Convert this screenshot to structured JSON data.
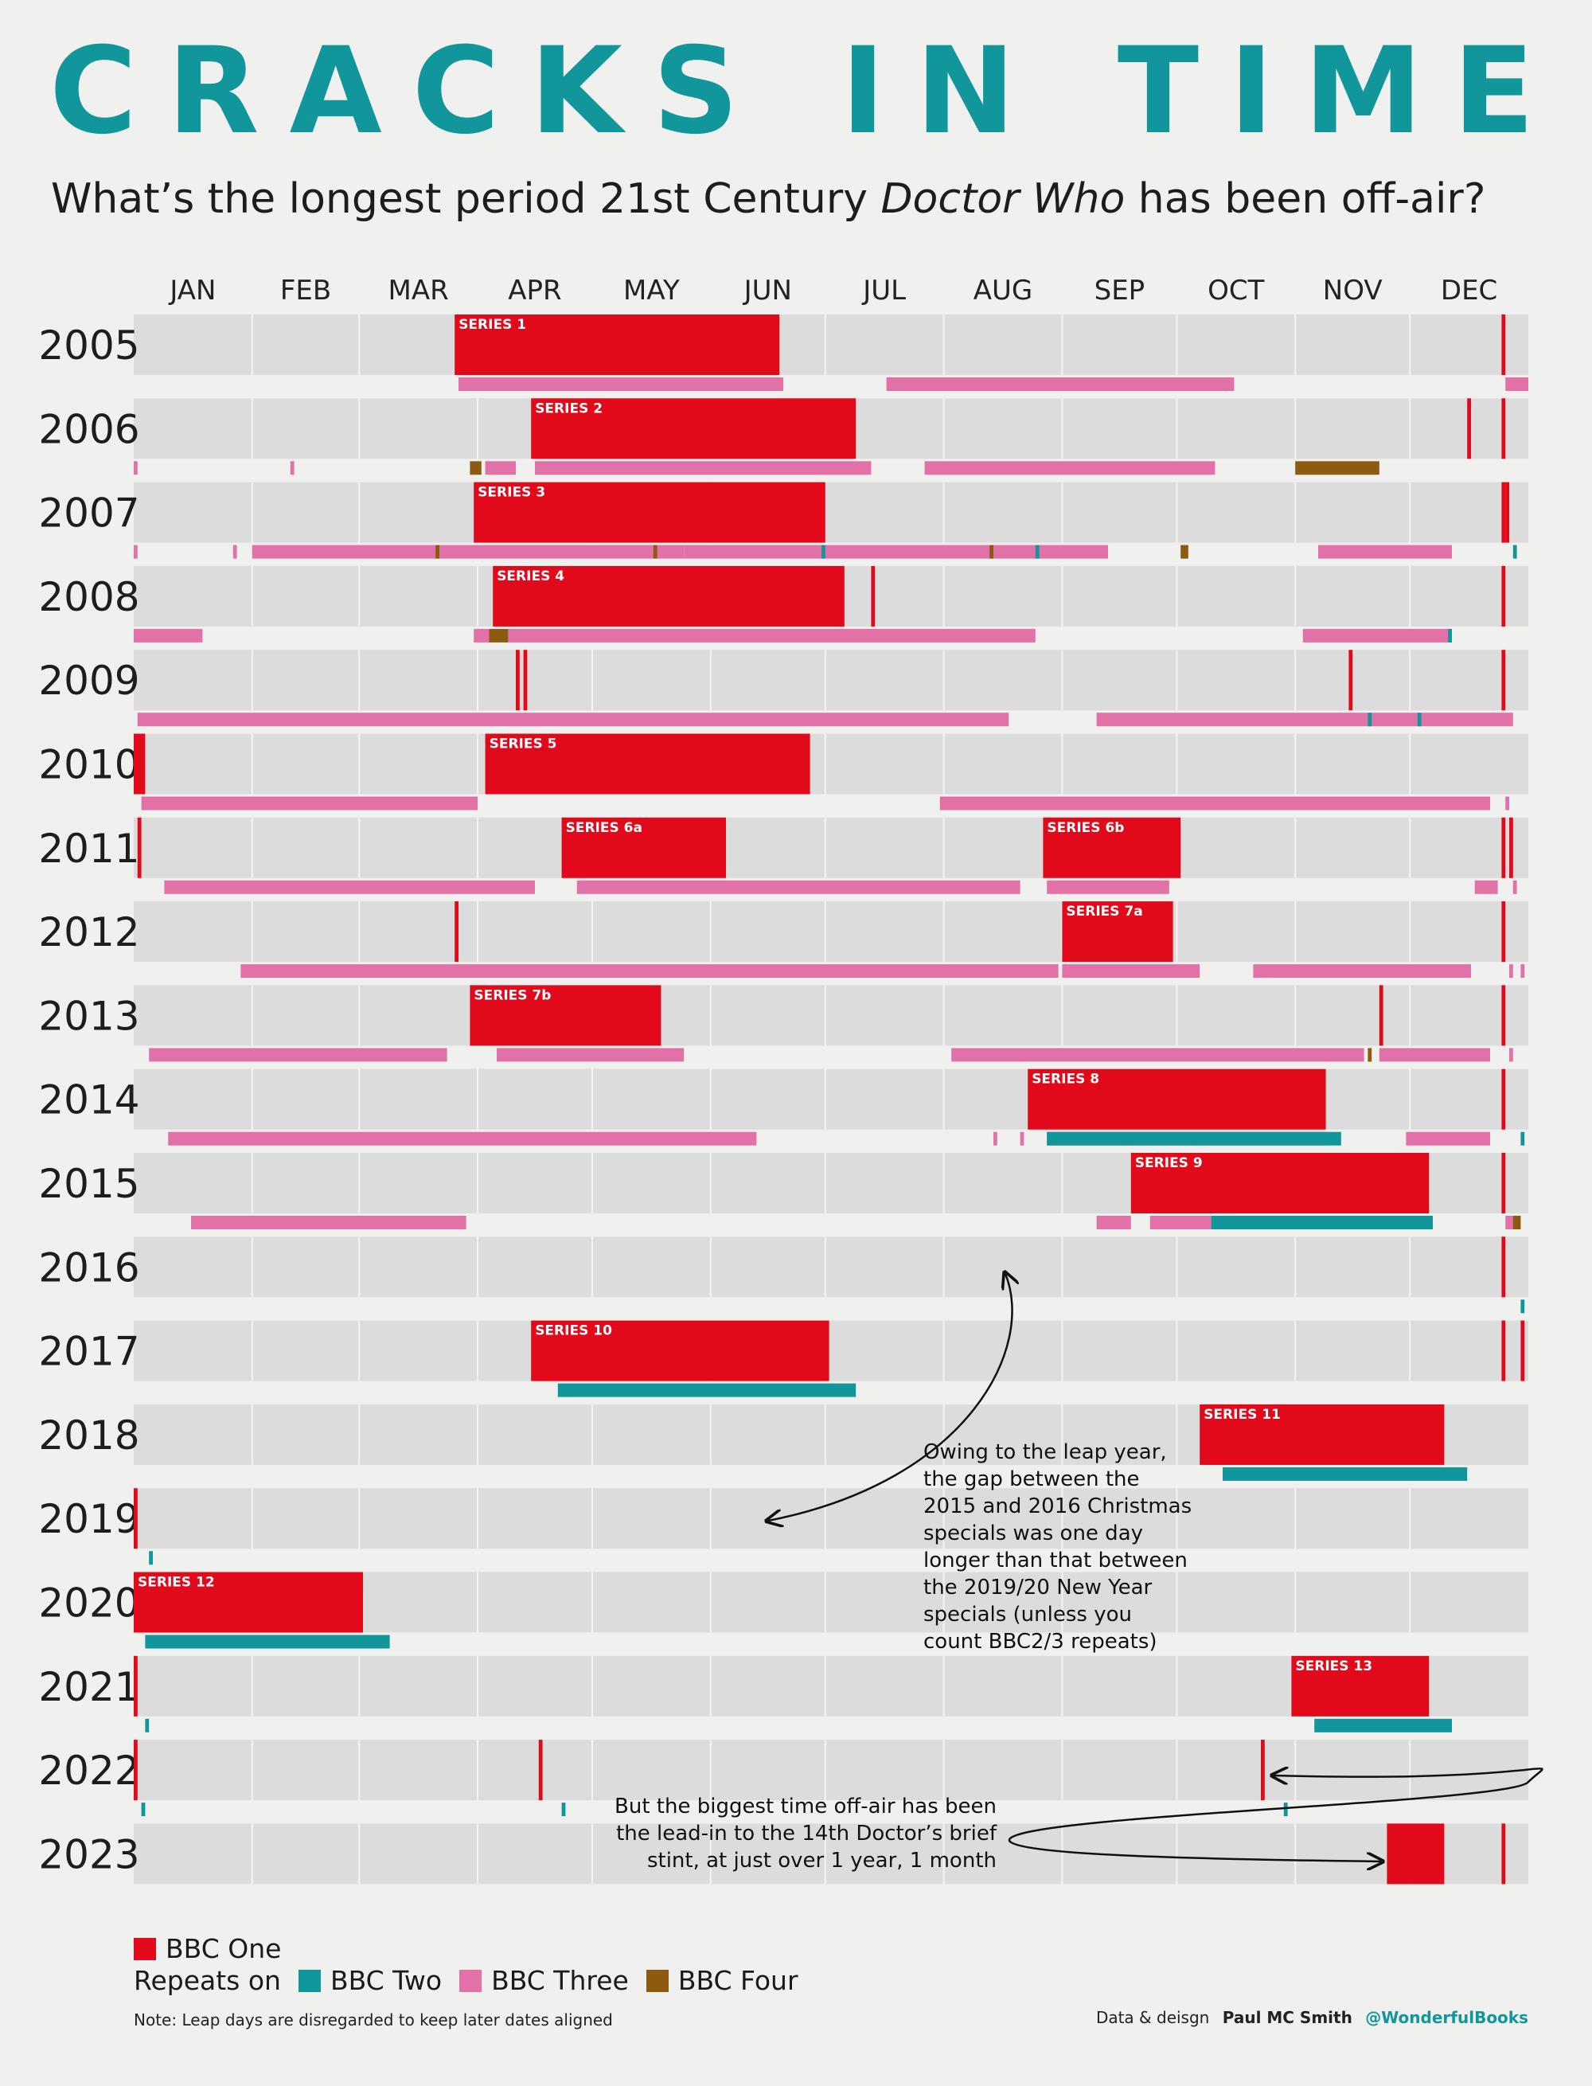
{
  "title": "CRACKS IN TIME",
  "subtitle": {
    "prefix": "What’s the longest period 21st Century ",
    "italic": "Doctor Who",
    "suffix": " has been off-air?"
  },
  "colors": {
    "bbc_one": "#e2091b",
    "bbc_two": "#11969c",
    "bbc_three": "#e271a8",
    "bbc_four": "#8d5b10",
    "title": "#11969c",
    "row_bg": "#dcdcdc"
  },
  "chart_data": {
    "type": "timeline",
    "x_axis": "day of year (Jan 1 – Dec 31, leap days disregarded)",
    "months": [
      "JAN",
      "FEB",
      "MAR",
      "APR",
      "MAY",
      "JUN",
      "JUL",
      "AUG",
      "SEP",
      "OCT",
      "NOV",
      "DEC"
    ],
    "years": [
      "2005",
      "2006",
      "2007",
      "2008",
      "2009",
      "2010",
      "2011",
      "2012",
      "2013",
      "2014",
      "2015",
      "2016",
      "2017",
      "2018",
      "2019",
      "2020",
      "2021",
      "2022",
      "2023"
    ],
    "broadcasts": {
      "2005": [
        {
          "label": "SERIES 1",
          "start": "03-26",
          "end": "06-18"
        },
        {
          "start": "12-25",
          "end": "12-25"
        }
      ],
      "2006": [
        {
          "label": "SERIES 2",
          "start": "04-15",
          "end": "07-08"
        },
        {
          "start": "12-16",
          "end": "12-16"
        },
        {
          "start": "12-25",
          "end": "12-25"
        }
      ],
      "2007": [
        {
          "label": "SERIES 3",
          "start": "03-31",
          "end": "06-30"
        },
        {
          "start": "12-25",
          "end": "12-25"
        },
        {
          "start": "12-26",
          "end": "12-26"
        }
      ],
      "2008": [
        {
          "label": "SERIES 4",
          "start": "04-05",
          "end": "07-05"
        },
        {
          "start": "07-13",
          "end": "07-13"
        },
        {
          "start": "12-25",
          "end": "12-25"
        }
      ],
      "2009": [
        {
          "start": "04-11",
          "end": "04-11"
        },
        {
          "start": "04-13",
          "end": "04-13"
        },
        {
          "start": "11-15",
          "end": "11-15"
        },
        {
          "start": "12-25",
          "end": "12-25"
        }
      ],
      "2010": [
        {
          "start": "01-01",
          "end": "01-03"
        },
        {
          "label": "SERIES 5",
          "start": "04-03",
          "end": "06-26"
        }
      ],
      "2011": [
        {
          "start": "01-02",
          "end": "01-02"
        },
        {
          "label": "SERIES 6a",
          "start": "04-23",
          "end": "06-04"
        },
        {
          "label": "SERIES 6b",
          "start": "08-27",
          "end": "10-01"
        },
        {
          "start": "12-25",
          "end": "12-25"
        },
        {
          "start": "12-27",
          "end": "12-27"
        }
      ],
      "2012": [
        {
          "start": "03-26",
          "end": "03-26"
        },
        {
          "label": "SERIES 7a",
          "start": "09-01",
          "end": "09-29"
        },
        {
          "start": "12-25",
          "end": "12-25"
        }
      ],
      "2013": [
        {
          "label": "SERIES 7b",
          "start": "03-30",
          "end": "05-18"
        },
        {
          "start": "11-23",
          "end": "11-23"
        },
        {
          "start": "12-25",
          "end": "12-25"
        }
      ],
      "2014": [
        {
          "label": "SERIES 8",
          "start": "08-23",
          "end": "11-08"
        },
        {
          "start": "12-25",
          "end": "12-25"
        }
      ],
      "2015": [
        {
          "label": "SERIES 9",
          "start": "09-19",
          "end": "12-05"
        },
        {
          "start": "12-25",
          "end": "12-25"
        }
      ],
      "2016": [
        {
          "start": "12-25",
          "end": "12-25"
        }
      ],
      "2017": [
        {
          "label": "SERIES 10",
          "start": "04-15",
          "end": "07-01"
        },
        {
          "start": "12-25",
          "end": "12-25"
        },
        {
          "start": "12-30",
          "end": "12-30"
        }
      ],
      "2018": [
        {
          "label": "SERIES 11",
          "start": "10-07",
          "end": "12-09"
        }
      ],
      "2019": [
        {
          "start": "01-01",
          "end": "01-01"
        }
      ],
      "2020": [
        {
          "label": "SERIES 12",
          "start": "01-01",
          "end": "03-01"
        }
      ],
      "2021": [
        {
          "start": "01-01",
          "end": "01-01"
        },
        {
          "label": "SERIES 13",
          "start": "10-31",
          "end": "12-05"
        }
      ],
      "2022": [
        {
          "start": "01-01",
          "end": "01-01"
        },
        {
          "start": "04-17",
          "end": "04-17"
        },
        {
          "start": "10-23",
          "end": "10-23"
        }
      ],
      "2023": [
        {
          "start": "11-25",
          "end": "12-09"
        },
        {
          "start": "12-25",
          "end": "12-25"
        }
      ]
    },
    "repeats": {
      "2005": [
        {
          "channel": "BBC Three",
          "start": "03-27",
          "end": "06-19"
        },
        {
          "channel": "BBC Three",
          "start": "07-17",
          "end": "10-15"
        },
        {
          "channel": "BBC Three",
          "start": "12-26",
          "end": "12-31"
        }
      ],
      "2006": [
        {
          "channel": "BBC Three",
          "start": "01-01",
          "end": "01-01"
        },
        {
          "channel": "BBC Three",
          "start": "02-11",
          "end": "02-11"
        },
        {
          "channel": "BBC Four",
          "start": "03-30",
          "end": "04-01"
        },
        {
          "channel": "BBC Three",
          "start": "04-03",
          "end": "04-10"
        },
        {
          "channel": "BBC Three",
          "start": "04-16",
          "end": "07-12"
        },
        {
          "channel": "BBC Three",
          "start": "07-27",
          "end": "10-10"
        },
        {
          "channel": "BBC Four",
          "start": "11-01",
          "end": "11-22"
        }
      ],
      "2007": [
        {
          "channel": "BBC Three",
          "start": "01-01",
          "end": "01-01"
        },
        {
          "channel": "BBC Three",
          "start": "01-27",
          "end": "01-27"
        },
        {
          "channel": "BBC Three",
          "start": "02-01",
          "end": "05-24"
        },
        {
          "channel": "BBC Four",
          "start": "03-21",
          "end": "03-21"
        },
        {
          "channel": "BBC Three",
          "start": "05-25",
          "end": "09-12"
        },
        {
          "channel": "BBC Four",
          "start": "05-17",
          "end": "05-17"
        },
        {
          "channel": "BBC Two",
          "start": "06-30",
          "end": "06-30"
        },
        {
          "channel": "BBC Four",
          "start": "08-13",
          "end": "08-13"
        },
        {
          "channel": "BBC Two",
          "start": "08-25",
          "end": "08-25"
        },
        {
          "channel": "BBC Four",
          "start": "10-02",
          "end": "10-03"
        },
        {
          "channel": "BBC Three",
          "start": "11-07",
          "end": "12-11"
        },
        {
          "channel": "BBC Two",
          "start": "12-28",
          "end": "12-28"
        }
      ],
      "2008": [
        {
          "channel": "BBC Three",
          "start": "01-01",
          "end": "01-18"
        },
        {
          "channel": "BBC Three",
          "start": "03-31",
          "end": "04-03"
        },
        {
          "channel": "BBC Four",
          "start": "04-04",
          "end": "04-08"
        },
        {
          "channel": "BBC Three",
          "start": "04-09",
          "end": "08-24"
        },
        {
          "channel": "BBC Three",
          "start": "11-03",
          "end": "12-11"
        },
        {
          "channel": "BBC Two",
          "start": "12-11",
          "end": "12-11"
        }
      ],
      "2009": [
        {
          "channel": "BBC Three",
          "start": "01-02",
          "end": "08-17"
        },
        {
          "channel": "BBC Three",
          "start": "09-10",
          "end": "12-27"
        },
        {
          "channel": "BBC Two",
          "start": "11-20",
          "end": "11-20"
        },
        {
          "channel": "BBC Two",
          "start": "12-03",
          "end": "12-03"
        }
      ],
      "2010": [
        {
          "channel": "BBC Three",
          "start": "01-03",
          "end": "03-31"
        },
        {
          "channel": "BBC Three",
          "start": "07-31",
          "end": "12-21"
        },
        {
          "channel": "BBC Three",
          "start": "12-26",
          "end": "12-26"
        }
      ],
      "2011": [
        {
          "channel": "BBC Three",
          "start": "01-09",
          "end": "04-15"
        },
        {
          "channel": "BBC Three",
          "start": "04-27",
          "end": "08-20"
        },
        {
          "channel": "BBC Three",
          "start": "08-28",
          "end": "09-28"
        },
        {
          "channel": "BBC Three",
          "start": "12-18",
          "end": "12-23"
        },
        {
          "channel": "BBC Three",
          "start": "12-28",
          "end": "12-28"
        }
      ],
      "2012": [
        {
          "channel": "BBC Three",
          "start": "01-29",
          "end": "08-30"
        },
        {
          "channel": "BBC Three",
          "start": "09-01",
          "end": "10-06"
        },
        {
          "channel": "BBC Three",
          "start": "10-21",
          "end": "12-16"
        },
        {
          "channel": "BBC Three",
          "start": "12-27",
          "end": "12-27"
        },
        {
          "channel": "BBC Three",
          "start": "12-30",
          "end": "12-30"
        }
      ],
      "2013": [
        {
          "channel": "BBC Three",
          "start": "01-05",
          "end": "03-23"
        },
        {
          "channel": "BBC Three",
          "start": "04-06",
          "end": "05-24"
        },
        {
          "channel": "BBC Three",
          "start": "08-03",
          "end": "11-18"
        },
        {
          "channel": "BBC Four",
          "start": "11-20",
          "end": "11-20"
        },
        {
          "channel": "BBC Three",
          "start": "11-23",
          "end": "12-21"
        },
        {
          "channel": "BBC Three",
          "start": "12-27",
          "end": "12-27"
        }
      ],
      "2014": [
        {
          "channel": "BBC Three",
          "start": "01-10",
          "end": "06-12"
        },
        {
          "channel": "BBC Three",
          "start": "08-14",
          "end": "08-14"
        },
        {
          "channel": "BBC Three",
          "start": "08-21",
          "end": "08-21"
        },
        {
          "channel": "BBC Three",
          "start": "08-28",
          "end": "11-08"
        },
        {
          "channel": "BBC Two",
          "start": "08-28",
          "end": "11-12"
        },
        {
          "channel": "BBC Three",
          "start": "11-30",
          "end": "12-21"
        },
        {
          "channel": "BBC Two",
          "start": "12-30",
          "end": "12-30"
        }
      ],
      "2015": [
        {
          "channel": "BBC Three",
          "start": "01-16",
          "end": "03-28"
        },
        {
          "channel": "BBC Three",
          "start": "09-10",
          "end": "09-18"
        },
        {
          "channel": "BBC Three",
          "start": "09-24",
          "end": "10-09"
        },
        {
          "channel": "BBC Two",
          "start": "10-10",
          "end": "12-06"
        },
        {
          "channel": "BBC Three",
          "start": "12-26",
          "end": "12-28"
        },
        {
          "channel": "BBC Four",
          "start": "12-28",
          "end": "12-29"
        }
      ],
      "2016": [
        {
          "channel": "BBC Two",
          "start": "12-30",
          "end": "12-30"
        }
      ],
      "2017": [
        {
          "channel": "BBC Two",
          "start": "04-22",
          "end": "07-08"
        }
      ],
      "2018": [
        {
          "channel": "BBC Two",
          "start": "10-13",
          "end": "12-15"
        }
      ],
      "2019": [
        {
          "channel": "BBC Two",
          "start": "01-05",
          "end": "01-05"
        }
      ],
      "2020": [
        {
          "channel": "BBC Two",
          "start": "01-04",
          "end": "03-08"
        }
      ],
      "2021": [
        {
          "channel": "BBC Two",
          "start": "01-04",
          "end": "01-04"
        },
        {
          "channel": "BBC Two",
          "start": "11-06",
          "end": "12-11"
        }
      ],
      "2022": [
        {
          "channel": "BBC Two",
          "start": "01-03",
          "end": "01-03"
        },
        {
          "channel": "BBC Two",
          "start": "04-23",
          "end": "04-23"
        },
        {
          "channel": "BBC Two",
          "start": "10-29",
          "end": "10-29"
        }
      ],
      "2023": []
    }
  },
  "annotations": {
    "leap_year": "Owing to the leap year, the gap between the 2015 and 2016 Christmas specials was one day longer than that between the 2019/20 New Year specials (unless you count BBC2/3 repeats)",
    "longest_gap": "But the biggest time off-air has been the lead-in to the 14th Doctor’s brief stint, at just over 1 year, 1 month"
  },
  "legend": {
    "bbc_one": "BBC One",
    "repeats_prefix": "Repeats on",
    "bbc_two": "BBC Two",
    "bbc_three": "BBC Three",
    "bbc_four": "BBC Four"
  },
  "footer": {
    "note": "Note: Leap days are disregarded to keep later dates aligned",
    "credit_prefix": "Data & deisgn",
    "credit_name": "Paul MC Smith",
    "credit_handle": "@WonderfulBooks"
  }
}
